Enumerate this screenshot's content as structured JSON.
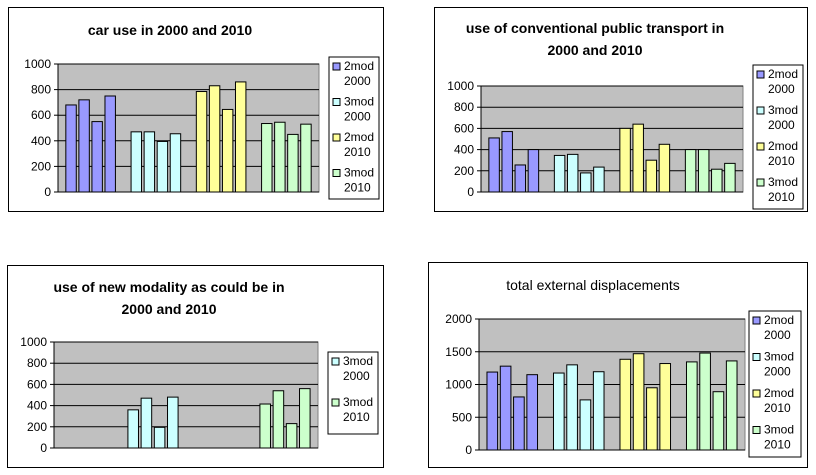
{
  "legend_labels": {
    "2mod_2000": [
      "2mod",
      "2000"
    ],
    "3mod_2000": [
      "3mod",
      "2000"
    ],
    "2mod_2010": [
      "2mod",
      "2010"
    ],
    "3mod_2010": [
      "3mod",
      "2010"
    ]
  },
  "chart_data": [
    {
      "type": "bar",
      "title": [
        "car use in 2000 and 2010"
      ],
      "title_bold": true,
      "ylim": [
        0,
        1000
      ],
      "yticks": [
        0,
        200,
        400,
        600,
        800,
        1000
      ],
      "legend_placement": "right",
      "grid": true,
      "series": [
        {
          "key": "2mod_2000",
          "color": "#9999ff",
          "values": [
            680,
            720,
            550,
            750
          ]
        },
        {
          "key": "3mod_2000",
          "color": "#ccffff",
          "values": [
            470,
            470,
            395,
            455
          ]
        },
        {
          "key": "2mod_2010",
          "color": "#ffff99",
          "values": [
            785,
            830,
            645,
            860
          ]
        },
        {
          "key": "3mod_2010",
          "color": "#ccffcc",
          "values": [
            535,
            545,
            450,
            530
          ]
        }
      ]
    },
    {
      "type": "bar",
      "title": [
        "use of conventional public transport in",
        "2000 and 2010"
      ],
      "title_bold": true,
      "ylim": [
        0,
        1000
      ],
      "yticks": [
        0,
        200,
        400,
        600,
        800,
        1000
      ],
      "legend_placement": "right",
      "grid": true,
      "series": [
        {
          "key": "2mod_2000",
          "color": "#9999ff",
          "values": [
            510,
            570,
            255,
            400
          ]
        },
        {
          "key": "3mod_2000",
          "color": "#ccffff",
          "values": [
            345,
            355,
            180,
            235
          ]
        },
        {
          "key": "2mod_2010",
          "color": "#ffff99",
          "values": [
            600,
            640,
            300,
            450
          ]
        },
        {
          "key": "3mod_2010",
          "color": "#ccffcc",
          "values": [
            400,
            400,
            215,
            270
          ]
        }
      ]
    },
    {
      "type": "bar",
      "title": [
        "use of new modality as could be in",
        "2000 and 2010"
      ],
      "title_bold": true,
      "ylim": [
        0,
        1000
      ],
      "yticks": [
        0,
        200,
        400,
        600,
        800,
        1000
      ],
      "legend_placement": "right",
      "grid": true,
      "series": [
        {
          "key": "3mod_2000",
          "color": "#ccffff",
          "values": [
            360,
            470,
            195,
            480
          ]
        },
        {
          "key": "3mod_2010",
          "color": "#ccffcc",
          "values": [
            415,
            540,
            230,
            560
          ]
        }
      ]
    },
    {
      "type": "bar",
      "title": [
        "total external displacements"
      ],
      "title_bold": false,
      "ylim": [
        0,
        2000
      ],
      "yticks": [
        0,
        500,
        1000,
        1500,
        2000
      ],
      "legend_placement": "right",
      "grid": true,
      "series": [
        {
          "key": "2mod_2000",
          "color": "#9999ff",
          "values": [
            1190,
            1280,
            810,
            1150
          ]
        },
        {
          "key": "3mod_2000",
          "color": "#ccffff",
          "values": [
            1175,
            1300,
            765,
            1195
          ]
        },
        {
          "key": "2mod_2010",
          "color": "#ffff99",
          "values": [
            1385,
            1470,
            950,
            1320
          ]
        },
        {
          "key": "3mod_2010",
          "color": "#ccffcc",
          "values": [
            1345,
            1480,
            890,
            1360
          ]
        }
      ]
    }
  ]
}
